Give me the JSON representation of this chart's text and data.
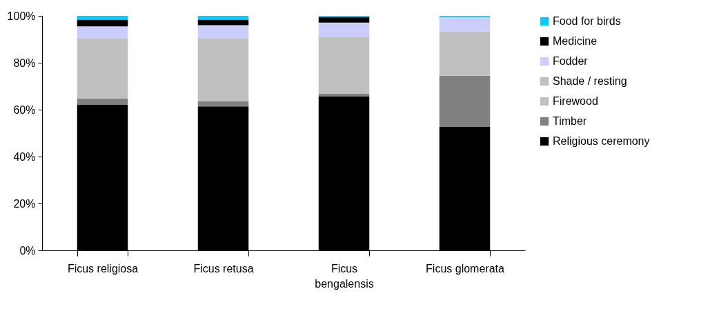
{
  "chart_data": {
    "type": "bar",
    "stacked": true,
    "categories": [
      "Ficus religiosa",
      "Ficus retusa",
      "Ficus bengalensis",
      "Ficus glomerata"
    ],
    "series": [
      {
        "name": "Religious ceremony",
        "color": "#000000",
        "values": [
          62.2,
          61.4,
          65.6,
          52.8
        ]
      },
      {
        "name": "Timber",
        "color": "#808080",
        "values": [
          2.6,
          2.2,
          1.2,
          21.7
        ]
      },
      {
        "name": "Firewood",
        "color": "#c0c0c0",
        "values": [
          0,
          0,
          0,
          0
        ]
      },
      {
        "name": "Shade / resting",
        "color": "#c0c0c0",
        "values": [
          25.5,
          26.7,
          24.3,
          18.9
        ]
      },
      {
        "name": "Fodder",
        "color": "#ccccff",
        "values": [
          5.2,
          5.7,
          6.0,
          6.1
        ]
      },
      {
        "name": "Medicine",
        "color": "#000000",
        "values": [
          2.9,
          2.4,
          2.4,
          0
        ]
      },
      {
        "name": "Food for birds",
        "color": "#00ccff",
        "values": [
          1.6,
          1.6,
          0.5,
          0.5
        ]
      }
    ],
    "ylim": [
      0,
      100
    ],
    "yticks": [
      {
        "value": 0,
        "label": "0%"
      },
      {
        "value": 20,
        "label": "20%"
      },
      {
        "value": 40,
        "label": "40%"
      },
      {
        "value": 60,
        "label": "60%"
      },
      {
        "value": 80,
        "label": "80%"
      },
      {
        "value": 100,
        "label": "100%"
      }
    ],
    "grid": false,
    "legend": "right"
  }
}
